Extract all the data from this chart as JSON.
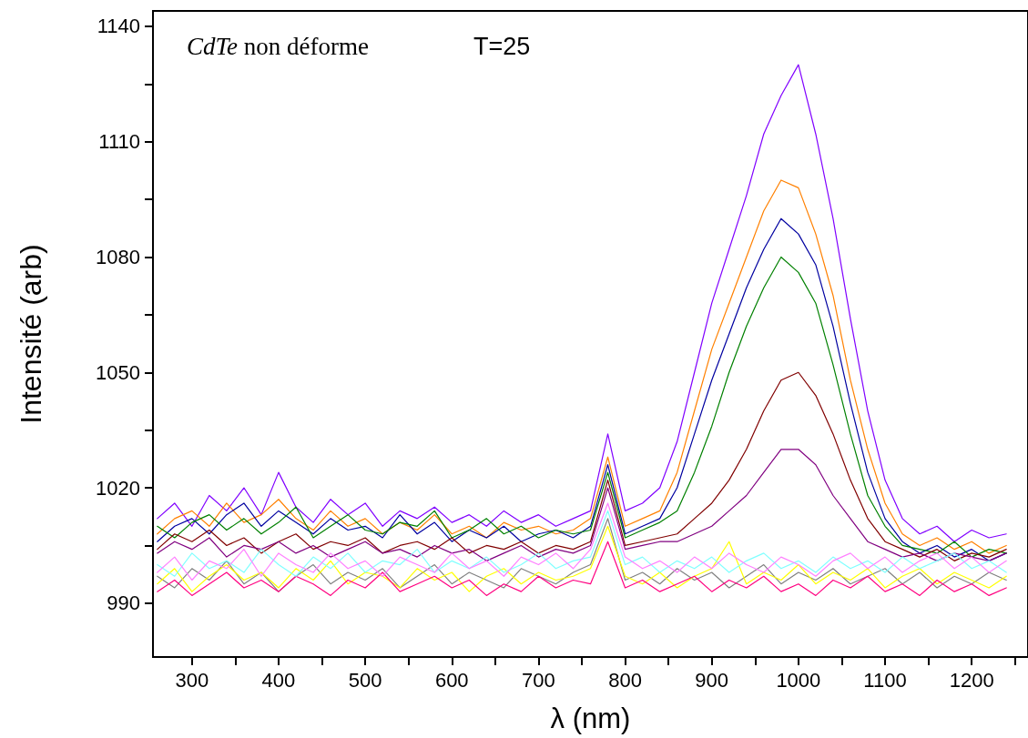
{
  "chart_data": {
    "type": "line",
    "xlabel": "λ (nm)",
    "ylabel": "Intensité (arb)",
    "annotations": [
      "CdTe non déforme",
      "T=25"
    ],
    "xlim": [
      255,
      1265
    ],
    "ylim": [
      976,
      1144
    ],
    "xticks": [
      300,
      {
        "value": 350,
        "label": null
      },
      400,
      {
        "value": 450,
        "label": null
      },
      500,
      {
        "value": 550,
        "label": null
      },
      600,
      {
        "value": 650,
        "label": null
      },
      700,
      {
        "value": 750,
        "label": null
      },
      800,
      {
        "value": 850,
        "label": null
      },
      900,
      {
        "value": 950,
        "label": null
      },
      1000,
      {
        "value": 1050,
        "label": null
      },
      1100,
      {
        "value": 1150,
        "label": null
      },
      1200,
      {
        "value": 1250,
        "label": null
      }
    ],
    "yticks": [
      990,
      {
        "value": 1005,
        "label": null
      },
      1020,
      {
        "value": 1035,
        "label": null
      },
      1050,
      {
        "value": 1065,
        "label": null
      },
      1080,
      {
        "value": 1095,
        "label": null
      },
      1110,
      {
        "value": 1125,
        "label": null
      },
      1140
    ],
    "grid": false,
    "marker": "none",
    "line_style": "solid",
    "x": [
      260,
      280,
      300,
      320,
      340,
      360,
      380,
      400,
      420,
      440,
      460,
      480,
      500,
      520,
      540,
      560,
      580,
      600,
      620,
      640,
      660,
      680,
      700,
      720,
      740,
      760,
      780,
      800,
      820,
      840,
      860,
      880,
      900,
      920,
      940,
      960,
      980,
      1000,
      1020,
      1040,
      1060,
      1080,
      1100,
      1120,
      1140,
      1160,
      1180,
      1200,
      1220,
      1240
    ],
    "series": [
      {
        "color": "#8000ff",
        "values": [
          1012,
          1016,
          1010,
          1018,
          1014,
          1020,
          1013,
          1024,
          1015,
          1011,
          1017,
          1013,
          1016,
          1010,
          1014,
          1012,
          1015,
          1011,
          1013,
          1010,
          1014,
          1011,
          1013,
          1010,
          1012,
          1014,
          1034,
          1014,
          1016,
          1020,
          1032,
          1050,
          1068,
          1082,
          1096,
          1112,
          1122,
          1130,
          1112,
          1090,
          1064,
          1040,
          1022,
          1012,
          1008,
          1010,
          1006,
          1009,
          1007,
          1008
        ]
      },
      {
        "color": "#ff8000",
        "values": [
          1008,
          1012,
          1014,
          1010,
          1016,
          1011,
          1013,
          1017,
          1012,
          1009,
          1014,
          1010,
          1012,
          1008,
          1011,
          1009,
          1013,
          1008,
          1010,
          1007,
          1011,
          1009,
          1010,
          1008,
          1009,
          1012,
          1028,
          1010,
          1012,
          1014,
          1024,
          1040,
          1056,
          1068,
          1080,
          1092,
          1100,
          1098,
          1086,
          1070,
          1048,
          1030,
          1016,
          1008,
          1005,
          1007,
          1004,
          1006,
          1003,
          1005
        ]
      },
      {
        "color": "#0000a0",
        "values": [
          1006,
          1010,
          1012,
          1008,
          1013,
          1016,
          1010,
          1014,
          1011,
          1008,
          1012,
          1009,
          1010,
          1007,
          1013,
          1008,
          1011,
          1006,
          1009,
          1007,
          1010,
          1006,
          1008,
          1009,
          1007,
          1010,
          1026,
          1008,
          1010,
          1012,
          1020,
          1034,
          1048,
          1060,
          1072,
          1082,
          1090,
          1086,
          1078,
          1062,
          1042,
          1024,
          1012,
          1006,
          1003,
          1005,
          1002,
          1004,
          1001,
          1003
        ]
      },
      {
        "color": "#008000",
        "values": [
          1010,
          1007,
          1011,
          1013,
          1009,
          1012,
          1008,
          1011,
          1015,
          1007,
          1010,
          1013,
          1009,
          1008,
          1011,
          1010,
          1014,
          1007,
          1009,
          1012,
          1008,
          1010,
          1007,
          1009,
          1008,
          1009,
          1024,
          1007,
          1009,
          1011,
          1014,
          1024,
          1036,
          1050,
          1062,
          1072,
          1080,
          1076,
          1068,
          1052,
          1034,
          1018,
          1010,
          1005,
          1004,
          1003,
          1006,
          1002,
          1004,
          1003
        ]
      },
      {
        "color": "#800000",
        "values": [
          1004,
          1008,
          1006,
          1009,
          1005,
          1007,
          1003,
          1006,
          1008,
          1004,
          1006,
          1005,
          1007,
          1003,
          1005,
          1006,
          1004,
          1007,
          1003,
          1005,
          1004,
          1006,
          1003,
          1005,
          1004,
          1006,
          1022,
          1005,
          1006,
          1007,
          1008,
          1012,
          1016,
          1022,
          1030,
          1040,
          1048,
          1050,
          1044,
          1034,
          1022,
          1012,
          1006,
          1004,
          1002,
          1004,
          1001,
          1003,
          1002,
          1004
        ]
      },
      {
        "color": "#800080",
        "values": [
          1003,
          1006,
          1004,
          1007,
          1002,
          1005,
          1004,
          1006,
          1003,
          1005,
          1002,
          1004,
          1006,
          1003,
          1004,
          1002,
          1005,
          1003,
          1004,
          1001,
          1003,
          1005,
          1002,
          1004,
          1003,
          1005,
          1020,
          1004,
          1005,
          1006,
          1006,
          1008,
          1010,
          1014,
          1018,
          1024,
          1030,
          1030,
          1026,
          1018,
          1012,
          1006,
          1004,
          1002,
          1003,
          1001,
          1003,
          1002,
          1001,
          1003
        ]
      },
      {
        "color": "#808080",
        "values": [
          997,
          994,
          999,
          996,
          1001,
          995,
          998,
          993,
          997,
          1000,
          995,
          998,
          996,
          999,
          994,
          997,
          1000,
          995,
          998,
          996,
          994,
          999,
          997,
          995,
          998,
          1000,
          1012,
          996,
          998,
          995,
          999,
          996,
          998,
          994,
          997,
          1000,
          995,
          998,
          996,
          999,
          995,
          997,
          999,
          995,
          998,
          994,
          997,
          995,
          998,
          996
        ]
      },
      {
        "color": "#ffff00",
        "values": [
          995,
          999,
          993,
          997,
          1000,
          996,
          998,
          994,
          999,
          996,
          1001,
          995,
          998,
          997,
          994,
          999,
          996,
          998,
          993,
          997,
          999,
          995,
          998,
          996,
          997,
          999,
          1010,
          997,
          995,
          998,
          994,
          997,
          999,
          1006,
          995,
          998,
          996,
          1000,
          995,
          998,
          996,
          999,
          994,
          997,
          999,
          995,
          998,
          996,
          994,
          997
        ]
      },
      {
        "color": "#ff0080",
        "values": [
          993,
          996,
          992,
          995,
          998,
          994,
          996,
          993,
          997,
          995,
          992,
          996,
          994,
          998,
          993,
          995,
          997,
          994,
          996,
          992,
          995,
          993,
          997,
          994,
          996,
          995,
          1006,
          994,
          996,
          993,
          995,
          997,
          993,
          996,
          994,
          997,
          993,
          995,
          992,
          996,
          994,
          997,
          993,
          995,
          992,
          996,
          993,
          995,
          992,
          994
        ]
      },
      {
        "color": "#80ffff",
        "values": [
          1000,
          997,
          1003,
          999,
          1001,
          998,
          1004,
          1000,
          997,
          1002,
          999,
          1003,
          998,
          1001,
          1000,
          1004,
          998,
          1001,
          999,
          1002,
          998,
          1000,
          1003,
          999,
          1001,
          1002,
          1014,
          1000,
          1002,
          998,
          1001,
          999,
          1002,
          998,
          1001,
          1003,
          999,
          1001,
          998,
          1002,
          999,
          1001,
          998,
          1002,
          999,
          1001,
          1003,
          999,
          1001,
          998
        ]
      },
      {
        "color": "#ff80ff",
        "values": [
          998,
          1002,
          996,
          1001,
          999,
          1004,
          997,
          1003,
          1000,
          998,
          1003,
          999,
          1001,
          997,
          1002,
          1000,
          998,
          1003,
          999,
          1001,
          997,
          1002,
          1000,
          1003,
          999,
          1004,
          1016,
          1002,
          999,
          1001,
          998,
          1002,
          999,
          1003,
          1000,
          998,
          1002,
          1000,
          997,
          1001,
          1003,
          999,
          1002,
          998,
          1001,
          1003,
          999,
          1002,
          998,
          1001
        ]
      }
    ]
  }
}
